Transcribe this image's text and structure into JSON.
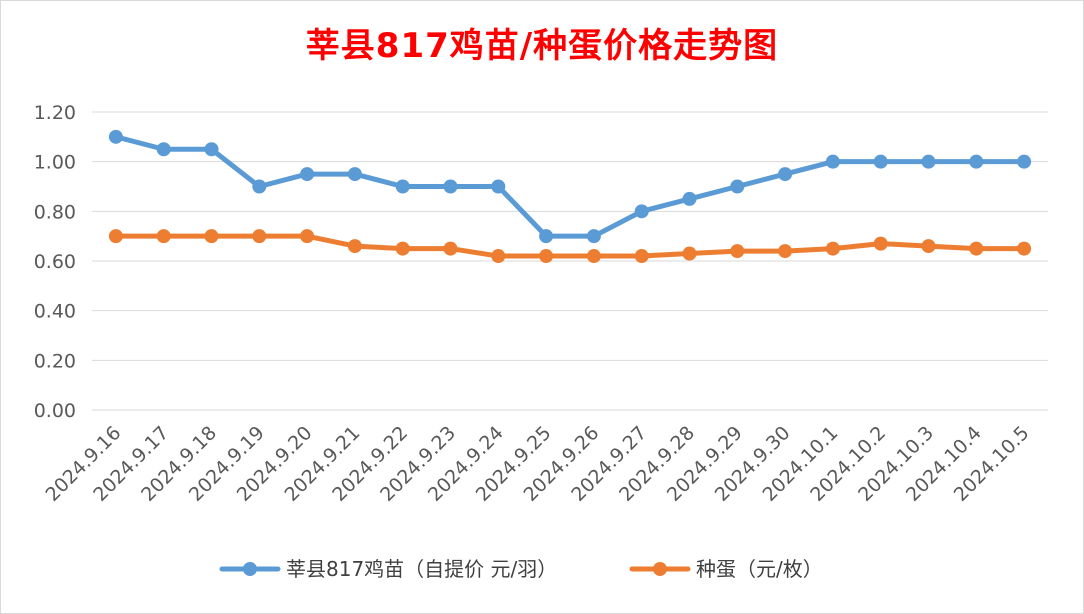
{
  "chart_data": {
    "type": "line",
    "title": "莘县817鸡苗/种蛋价格走势图",
    "categories": [
      "2024.9.16",
      "2024.9.17",
      "2024.9.18",
      "2024.9.19",
      "2024.9.20",
      "2024.9.21",
      "2024.9.22",
      "2024.9.23",
      "2024.9.24",
      "2024.9.25",
      "2024.9.26",
      "2024.9.27",
      "2024.9.28",
      "2024.9.29",
      "2024.9.30",
      "2024.10.1",
      "2024.10.2",
      "2024.10.3",
      "2024.10.4",
      "2024.10.5"
    ],
    "yticks": [
      "0.00",
      "0.20",
      "0.40",
      "0.60",
      "0.80",
      "1.00",
      "1.20"
    ],
    "ylim": [
      0,
      1.2
    ],
    "grid": true,
    "legend_position": "bottom",
    "series": [
      {
        "name": "莘县817鸡苗（自提价 元/羽）",
        "color": "#5b9bd5",
        "values": [
          1.1,
          1.05,
          1.05,
          0.9,
          0.95,
          0.95,
          0.9,
          0.9,
          0.9,
          0.7,
          0.7,
          0.8,
          0.85,
          0.9,
          0.95,
          1.0,
          1.0,
          1.0,
          1.0,
          1.0
        ]
      },
      {
        "name": "种蛋（元/枚）",
        "color": "#ed7d31",
        "values": [
          0.7,
          0.7,
          0.7,
          0.7,
          0.7,
          0.66,
          0.65,
          0.65,
          0.62,
          0.62,
          0.62,
          0.62,
          0.63,
          0.64,
          0.64,
          0.65,
          0.67,
          0.66,
          0.65,
          0.65
        ]
      }
    ]
  }
}
